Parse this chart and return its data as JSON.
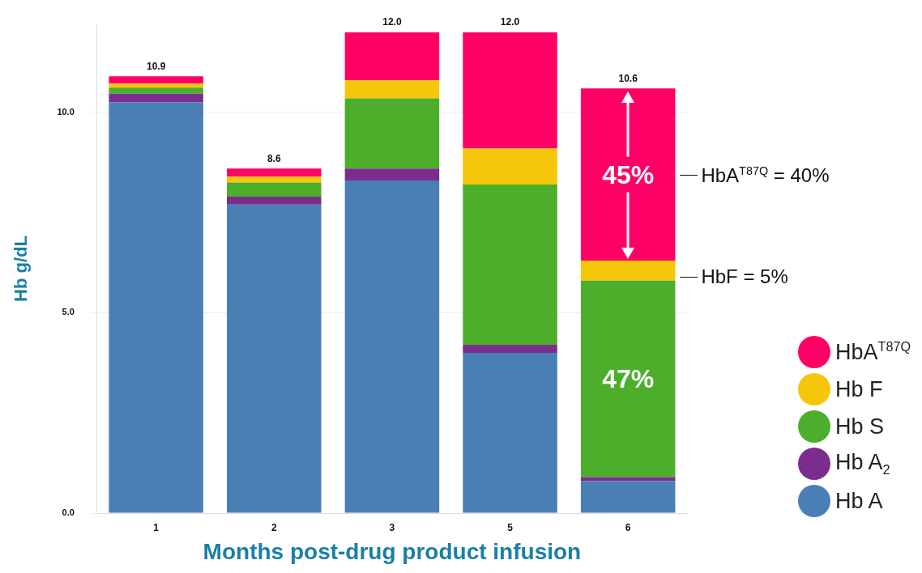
{
  "chart_data": {
    "type": "bar",
    "stacked": true,
    "xlabel": "Months post-drug product infusion",
    "ylabel": "Hb g/dL",
    "categories": [
      "1",
      "2",
      "3",
      "5",
      "6"
    ],
    "series": [
      {
        "name": "Hb A",
        "color": "#4a7fb5",
        "values": [
          10.25,
          7.7,
          8.3,
          4.0,
          0.8
        ]
      },
      {
        "name": "Hb A$_{2}$",
        "color": "#7b2d8e",
        "values": [
          0.22,
          0.2,
          0.3,
          0.2,
          0.1
        ]
      },
      {
        "name": "Hb S",
        "color": "#4cae2a",
        "values": [
          0.15,
          0.35,
          1.75,
          4.0,
          4.9
        ]
      },
      {
        "name": "Hb F",
        "color": "#f5c60a",
        "values": [
          0.1,
          0.15,
          0.45,
          0.9,
          0.5
        ]
      },
      {
        "name": "HbA$^{T87Q}$",
        "color": "#ff0066",
        "values": [
          0.18,
          0.2,
          1.2,
          2.9,
          4.3
        ]
      }
    ],
    "totals": [
      "10.9",
      "8.6",
      "12.0",
      "12.0",
      "10.6"
    ],
    "ylim": [
      0,
      12.2
    ],
    "yticks": [
      {
        "value": 0,
        "label": "0.0"
      },
      {
        "value": 5,
        "label": "5.0"
      },
      {
        "value": 10,
        "label": "10.0"
      }
    ],
    "grid": "y",
    "legend": "right",
    "annotations": [
      "45%",
      "47%",
      "HbA$^{T87Q}$ = 40%",
      "HbF = 5%"
    ]
  }
}
